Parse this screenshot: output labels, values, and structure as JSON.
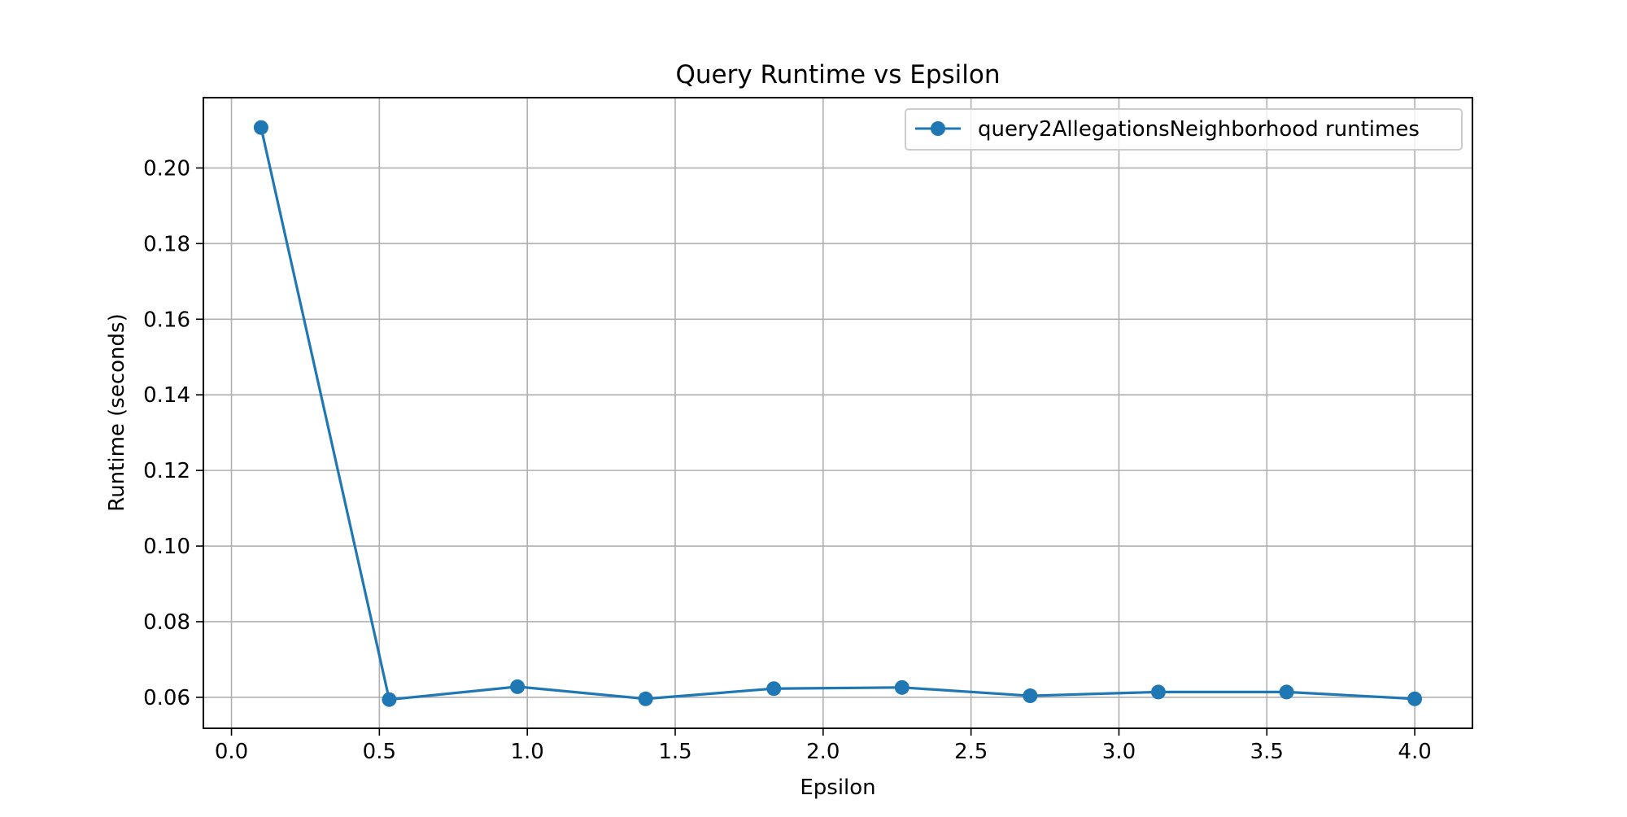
{
  "chart_data": {
    "type": "line",
    "title": "Query Runtime vs Epsilon",
    "xlabel": "Epsilon",
    "ylabel": "Runtime (seconds)",
    "xlim": [
      -0.095,
      4.195
    ],
    "ylim": [
      0.0518,
      0.2186
    ],
    "x_ticks": [
      0.0,
      0.5,
      1.0,
      1.5,
      2.0,
      2.5,
      3.0,
      3.5,
      4.0
    ],
    "x_tick_labels": [
      "0.0",
      "0.5",
      "1.0",
      "1.5",
      "2.0",
      "2.5",
      "3.0",
      "3.5",
      "4.0"
    ],
    "y_ticks": [
      0.06,
      0.08,
      0.1,
      0.12,
      0.14,
      0.16,
      0.18,
      0.2
    ],
    "y_tick_labels": [
      "0.06",
      "0.08",
      "0.10",
      "0.12",
      "0.14",
      "0.16",
      "0.18",
      "0.20"
    ],
    "grid": true,
    "legend_position": "upper right",
    "series": [
      {
        "name": "query2AllegationsNeighborhood runtimes",
        "color": "#1f77b4",
        "marker": "circle",
        "x": [
          0.1,
          0.5333,
          0.9667,
          1.4,
          1.8333,
          2.2667,
          2.7,
          3.1333,
          3.5667,
          4.0
        ],
        "y": [
          0.2107,
          0.0594,
          0.0628,
          0.0596,
          0.0623,
          0.0626,
          0.0604,
          0.0614,
          0.0614,
          0.0596
        ]
      }
    ]
  }
}
